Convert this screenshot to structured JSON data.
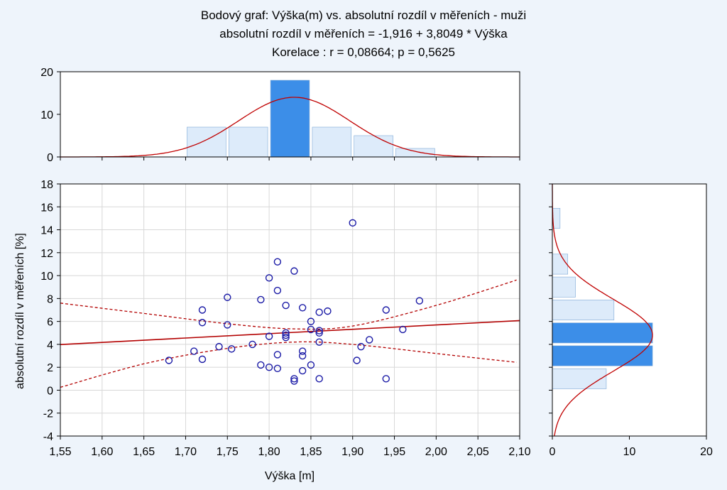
{
  "chart_data": {
    "type": "scatter",
    "title_lines": [
      "Bodový graf: Výška(m) vs. absolutní rozdíl v měřeních - muži",
      "absolutní rozdíl v měřeních = -1,916 + 3,8049 * Výška",
      "Korelace :   r = 0,08664; p = 0,5625"
    ],
    "xlabel": "Výška [m]",
    "ylabel": "absolutní rozdíl v měřeních [%]",
    "xlim": [
      1.55,
      2.1
    ],
    "ylim": [
      -4,
      18
    ],
    "x_ticks": [
      "1,55",
      "1,60",
      "1,65",
      "1,70",
      "1,75",
      "1,80",
      "1,85",
      "1,90",
      "1,95",
      "2,00",
      "2,05",
      "2,10"
    ],
    "y_ticks": [
      "-4",
      "-2",
      "0",
      "2",
      "4",
      "6",
      "8",
      "10",
      "12",
      "14",
      "16",
      "18"
    ],
    "grid": true,
    "regression": {
      "intercept": -1.916,
      "slope": 3.8049
    },
    "confidence_band": {
      "upper": [
        [
          1.55,
          7.6
        ],
        [
          1.65,
          6.7
        ],
        [
          1.75,
          5.8
        ],
        [
          1.83,
          5.35
        ],
        [
          1.9,
          5.6
        ],
        [
          2.0,
          7.4
        ],
        [
          2.1,
          9.7
        ]
      ],
      "lower": [
        [
          1.55,
          0.25
        ],
        [
          1.65,
          2.3
        ],
        [
          1.75,
          3.65
        ],
        [
          1.83,
          4.2
        ],
        [
          1.9,
          4.0
        ],
        [
          2.0,
          3.2
        ],
        [
          2.1,
          2.4
        ]
      ]
    },
    "points": [
      [
        1.68,
        2.6
      ],
      [
        1.71,
        3.4
      ],
      [
        1.72,
        7.0
      ],
      [
        1.72,
        5.9
      ],
      [
        1.72,
        2.7
      ],
      [
        1.74,
        3.8
      ],
      [
        1.75,
        8.1
      ],
      [
        1.75,
        5.7
      ],
      [
        1.755,
        3.6
      ],
      [
        1.78,
        4.0
      ],
      [
        1.79,
        7.9
      ],
      [
        1.79,
        2.2
      ],
      [
        1.8,
        9.8
      ],
      [
        1.8,
        4.7
      ],
      [
        1.8,
        2.0
      ],
      [
        1.81,
        11.2
      ],
      [
        1.81,
        8.7
      ],
      [
        1.81,
        3.1
      ],
      [
        1.81,
        1.9
      ],
      [
        1.82,
        7.4
      ],
      [
        1.82,
        5.0
      ],
      [
        1.82,
        4.8
      ],
      [
        1.82,
        4.6
      ],
      [
        1.83,
        10.4
      ],
      [
        1.83,
        1.0
      ],
      [
        1.83,
        0.8
      ],
      [
        1.84,
        7.2
      ],
      [
        1.84,
        3.4
      ],
      [
        1.84,
        3.0
      ],
      [
        1.84,
        1.7
      ],
      [
        1.85,
        6.0
      ],
      [
        1.85,
        5.3
      ],
      [
        1.85,
        2.2
      ],
      [
        1.86,
        6.8
      ],
      [
        1.86,
        5.2
      ],
      [
        1.86,
        5.0
      ],
      [
        1.86,
        4.2
      ],
      [
        1.86,
        1.0
      ],
      [
        1.87,
        6.9
      ],
      [
        1.9,
        14.6
      ],
      [
        1.905,
        2.6
      ],
      [
        1.91,
        3.8
      ],
      [
        1.92,
        4.4
      ],
      [
        1.94,
        7.0
      ],
      [
        1.94,
        1.0
      ],
      [
        1.96,
        5.3
      ],
      [
        1.98,
        7.8
      ]
    ],
    "top_histogram": {
      "ylim": [
        0,
        20
      ],
      "y_ticks": [
        "0",
        "10",
        "20"
      ],
      "bins": [
        {
          "from": 1.7,
          "to": 1.75,
          "count": 7
        },
        {
          "from": 1.75,
          "to": 1.8,
          "count": 7
        },
        {
          "from": 1.8,
          "to": 1.85,
          "count": 18
        },
        {
          "from": 1.85,
          "to": 1.9,
          "count": 7
        },
        {
          "from": 1.9,
          "to": 1.95,
          "count": 5
        },
        {
          "from": 1.95,
          "to": 2.0,
          "count": 2
        }
      ],
      "normal_curve": {
        "mean": 1.83,
        "sd": 0.0665,
        "peak": 14
      }
    },
    "right_histogram": {
      "xlim": [
        0,
        20
      ],
      "x_ticks": [
        "0",
        "10",
        "20"
      ],
      "bins": [
        {
          "from": 0,
          "to": 2,
          "count": 7
        },
        {
          "from": 2,
          "to": 4,
          "count": 13
        },
        {
          "from": 4,
          "to": 6,
          "count": 13
        },
        {
          "from": 6,
          "to": 8,
          "count": 8
        },
        {
          "from": 8,
          "to": 10,
          "count": 3
        },
        {
          "from": 10,
          "to": 12,
          "count": 2
        },
        {
          "from": 14,
          "to": 16,
          "count": 1
        }
      ],
      "normal_curve": {
        "mean": 4.8,
        "sd": 3.15,
        "peak": 13
      }
    },
    "colors": {
      "background": "#eef4fb",
      "bar_light": "#ddebfa",
      "bar_dark": "#3c8ee8",
      "marker": "#1a1aa6",
      "line": "#b30000",
      "curve": "#c00000",
      "grid": "#d8d8d8"
    }
  }
}
